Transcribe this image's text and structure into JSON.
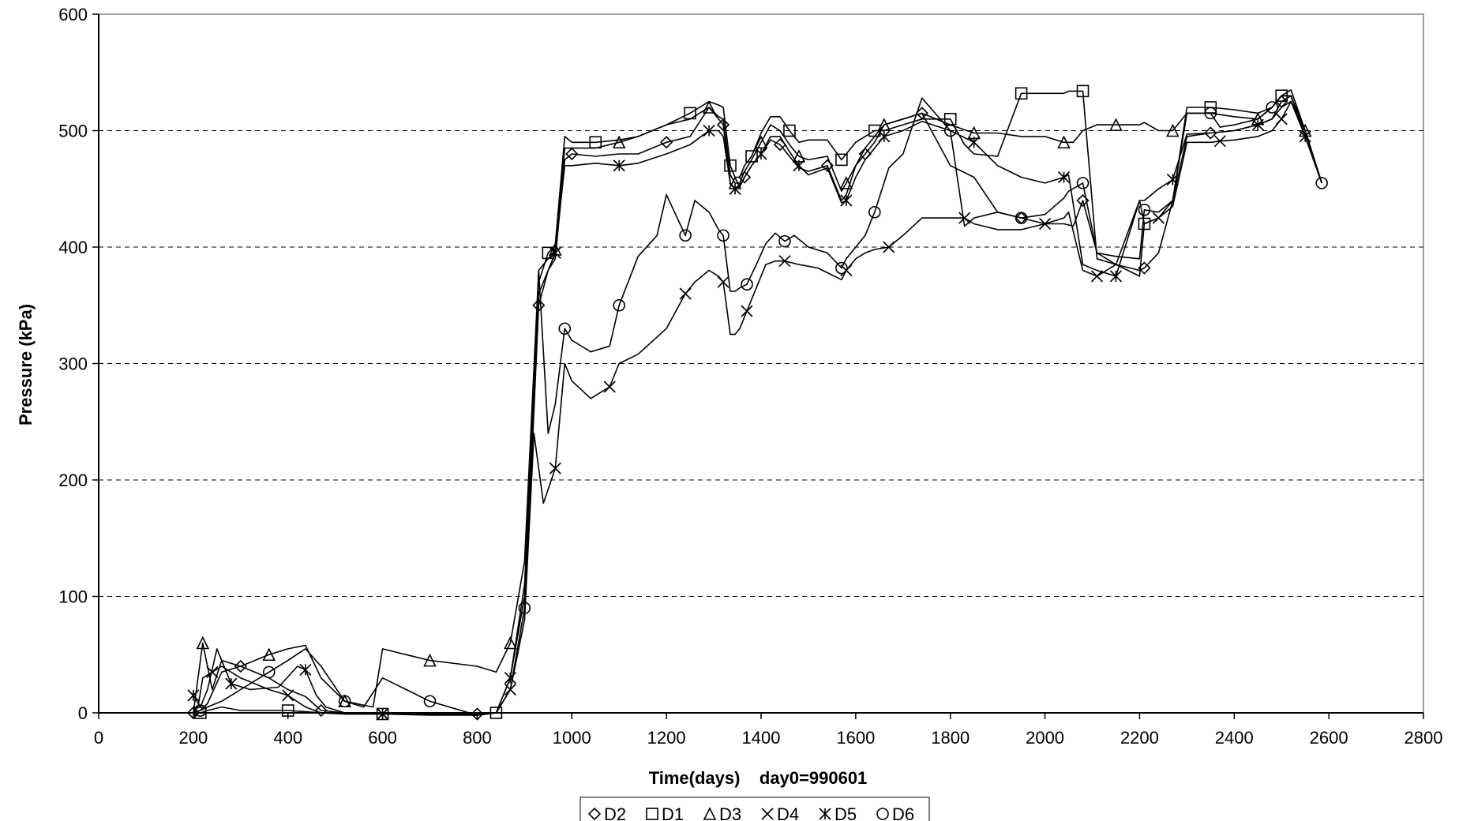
{
  "chart_data": {
    "type": "line",
    "xlabel": "Time(days)    day0=990601",
    "ylabel": "Pressure (kPa)",
    "xlim": [
      0,
      2800
    ],
    "ylim": [
      0,
      600
    ],
    "x_ticks": [
      0,
      200,
      400,
      600,
      800,
      1000,
      1200,
      1400,
      1600,
      1800,
      2000,
      2200,
      2400,
      2600,
      2800
    ],
    "y_ticks": [
      0,
      100,
      200,
      300,
      400,
      500,
      600
    ],
    "grid": "horizontal dashed",
    "legend": "bottom",
    "line_color": "#000000",
    "series": [
      {
        "name": "D2",
        "marker": "diamond",
        "x": [
          200,
          215,
          230,
          260,
          300,
          360,
          400,
          437,
          470,
          520,
          600,
          700,
          800,
          840,
          870,
          900,
          930,
          950,
          965,
          985,
          1000,
          1050,
          1100,
          1140,
          1200,
          1250,
          1290,
          1310,
          1320,
          1335,
          1345,
          1355,
          1365,
          1380,
          1400,
          1420,
          1440,
          1460,
          1480,
          1500,
          1540,
          1570,
          1580,
          1600,
          1620,
          1640,
          1660,
          1700,
          1740,
          1800,
          1850,
          1900,
          1950,
          2000,
          2040,
          2060,
          2080,
          2110,
          2150,
          2200,
          2210,
          2240,
          2270,
          2300,
          2350,
          2400,
          2450,
          2480,
          2500,
          2520,
          2550,
          2585
        ],
        "y": [
          0,
          2,
          8,
          35,
          40,
          30,
          20,
          14,
          2,
          0,
          0,
          -1,
          -1,
          0,
          20,
          80,
          350,
          380,
          390,
          475,
          480,
          478,
          480,
          480,
          490,
          495,
          520,
          510,
          505,
          455,
          450,
          452,
          460,
          470,
          480,
          492,
          488,
          478,
          468,
          465,
          470,
          440,
          445,
          470,
          480,
          490,
          505,
          510,
          515,
          470,
          460,
          430,
          425,
          420,
          420,
          418,
          440,
          395,
          385,
          380,
          382,
          395,
          440,
          495,
          498,
          500,
          505,
          510,
          525,
          530,
          495,
          455
        ]
      },
      {
        "name": "D1",
        "marker": "square",
        "x": [
          200,
          215,
          230,
          260,
          300,
          400,
          437,
          470,
          520,
          600,
          650,
          700,
          800,
          840,
          870,
          900,
          930,
          950,
          965,
          985,
          1000,
          1050,
          1100,
          1140,
          1200,
          1250,
          1290,
          1310,
          1320,
          1335,
          1345,
          1355,
          1365,
          1380,
          1400,
          1420,
          1440,
          1460,
          1480,
          1500,
          1540,
          1570,
          1580,
          1600,
          1620,
          1640,
          1660,
          1700,
          1740,
          1800,
          1830,
          1850,
          1900,
          1950,
          2000,
          2040,
          2050,
          2080,
          2110,
          2150,
          2200,
          2210,
          2240,
          2270,
          2300,
          2350,
          2400,
          2450,
          2480,
          2500,
          2520,
          2550,
          2585
        ],
        "y": [
          0,
          0,
          2,
          5,
          2,
          2,
          1,
          0,
          -1,
          -1,
          0,
          -1,
          -2,
          0,
          30,
          100,
          370,
          395,
          402,
          495,
          490,
          490,
          492,
          495,
          505,
          515,
          525,
          522,
          520,
          470,
          460,
          460,
          470,
          478,
          498,
          512,
          512,
          500,
          490,
          492,
          492,
          475,
          480,
          490,
          495,
          500,
          500,
          505,
          510,
          510,
          488,
          480,
          478,
          532,
          532,
          532,
          534,
          534,
          390,
          385,
          375,
          420,
          425,
          440,
          520,
          520,
          518,
          515,
          520,
          530,
          535,
          500,
          455
        ]
      },
      {
        "name": "D3",
        "marker": "triangle",
        "x": [
          200,
          210,
          220,
          240,
          260,
          300,
          360,
          400,
          437,
          470,
          520,
          580,
          600,
          650,
          700,
          760,
          800,
          840,
          870,
          900,
          930,
          950,
          965,
          985,
          1000,
          1050,
          1100,
          1140,
          1200,
          1250,
          1290,
          1310,
          1320,
          1335,
          1345,
          1355,
          1365,
          1380,
          1400,
          1420,
          1440,
          1460,
          1480,
          1500,
          1540,
          1570,
          1580,
          1600,
          1620,
          1640,
          1660,
          1700,
          1740,
          1800,
          1850,
          1900,
          1950,
          2000,
          2040,
          2060,
          2080,
          2110,
          2150,
          2200,
          2210,
          2240,
          2270,
          2300,
          2350,
          2400,
          2450,
          2480,
          2500,
          2520,
          2550,
          2585
        ],
        "y": [
          0,
          30,
          60,
          20,
          45,
          40,
          50,
          55,
          58,
          30,
          10,
          5,
          55,
          50,
          45,
          42,
          40,
          35,
          60,
          130,
          380,
          390,
          398,
          485,
          485,
          485,
          490,
          495,
          505,
          510,
          520,
          512,
          510,
          462,
          455,
          455,
          465,
          475,
          490,
          505,
          500,
          488,
          478,
          475,
          478,
          448,
          455,
          470,
          485,
          495,
          505,
          510,
          515,
          505,
          498,
          498,
          495,
          495,
          490,
          490,
          500,
          505,
          505,
          505,
          507,
          500,
          500,
          515,
          515,
          512,
          510,
          520,
          530,
          530,
          500,
          455
        ]
      },
      {
        "name": "D4",
        "marker": "x",
        "x": [
          200,
          210,
          220,
          240,
          260,
          300,
          360,
          400,
          437,
          470,
          520,
          600,
          700,
          800,
          840,
          870,
          900,
          920,
          940,
          965,
          985,
          1000,
          1040,
          1080,
          1100,
          1140,
          1200,
          1240,
          1260,
          1290,
          1310,
          1320,
          1335,
          1345,
          1355,
          1370,
          1390,
          1410,
          1430,
          1450,
          1480,
          1520,
          1570,
          1580,
          1600,
          1620,
          1640,
          1670,
          1700,
          1740,
          1800,
          1830,
          1850,
          1900,
          1950,
          2000,
          2040,
          2050,
          2080,
          2110,
          2150,
          2200,
          2210,
          2240,
          2270,
          2300,
          2350,
          2370,
          2400,
          2450,
          2480,
          2500,
          2520,
          2550,
          2585
        ],
        "y": [
          0,
          5,
          30,
          35,
          40,
          30,
          20,
          15,
          5,
          0,
          -1,
          -1,
          -2,
          -2,
          0,
          20,
          80,
          240,
          180,
          210,
          300,
          285,
          270,
          280,
          300,
          308,
          330,
          360,
          370,
          380,
          375,
          370,
          325,
          325,
          330,
          345,
          365,
          385,
          388,
          388,
          385,
          382,
          372,
          380,
          390,
          395,
          398,
          400,
          410,
          425,
          425,
          425,
          420,
          415,
          415,
          420,
          425,
          430,
          380,
          375,
          385,
          440,
          420,
          425,
          435,
          490,
          490,
          491,
          492,
          495,
          500,
          510,
          525,
          500,
          455
        ]
      },
      {
        "name": "D5",
        "marker": "asterisk",
        "x": [
          200,
          215,
          230,
          250,
          280,
          320,
          380,
          420,
          437,
          460,
          480,
          520,
          600,
          700,
          800,
          840,
          870,
          900,
          930,
          950,
          965,
          985,
          1000,
          1050,
          1100,
          1140,
          1200,
          1250,
          1290,
          1310,
          1320,
          1335,
          1345,
          1355,
          1365,
          1380,
          1400,
          1420,
          1440,
          1460,
          1480,
          1500,
          1540,
          1570,
          1580,
          1600,
          1620,
          1640,
          1660,
          1700,
          1740,
          1800,
          1850,
          1900,
          1950,
          2000,
          2040,
          2050,
          2080,
          2110,
          2150,
          2200,
          2210,
          2240,
          2270,
          2300,
          2350,
          2400,
          2450,
          2480,
          2500,
          2520,
          2550,
          2585
        ],
        "y": [
          15,
          5,
          20,
          55,
          25,
          20,
          22,
          40,
          37,
          15,
          5,
          0,
          -1,
          -1,
          -2,
          0,
          30,
          110,
          360,
          380,
          395,
          470,
          470,
          472,
          470,
          472,
          480,
          488,
          500,
          500,
          495,
          455,
          450,
          452,
          460,
          470,
          480,
          495,
          495,
          482,
          470,
          462,
          468,
          438,
          440,
          460,
          475,
          485,
          495,
          500,
          508,
          500,
          490,
          470,
          460,
          455,
          460,
          462,
          385,
          380,
          375,
          440,
          440,
          450,
          458,
          497,
          498,
          500,
          505,
          510,
          520,
          525,
          495,
          455
        ]
      },
      {
        "name": "D6",
        "marker": "circle",
        "x": [
          200,
          215,
          230,
          260,
          300,
          360,
          400,
          437,
          470,
          520,
          560,
          600,
          650,
          700,
          800,
          840,
          870,
          900,
          930,
          950,
          965,
          985,
          1000,
          1040,
          1080,
          1100,
          1140,
          1180,
          1200,
          1240,
          1260,
          1290,
          1310,
          1320,
          1335,
          1345,
          1355,
          1370,
          1390,
          1410,
          1430,
          1450,
          1470,
          1500,
          1540,
          1570,
          1580,
          1600,
          1620,
          1640,
          1670,
          1700,
          1740,
          1800,
          1830,
          1850,
          1900,
          1950,
          2000,
          2040,
          2050,
          2080,
          2110,
          2150,
          2200,
          2210,
          2240,
          2270,
          2300,
          2350,
          2370,
          2400,
          2450,
          2480,
          2500,
          2520,
          2550,
          2585
        ],
        "y": [
          0,
          2,
          5,
          10,
          20,
          35,
          45,
          55,
          40,
          10,
          5,
          30,
          20,
          10,
          -2,
          0,
          20,
          90,
          380,
          240,
          265,
          330,
          320,
          310,
          315,
          350,
          392,
          410,
          445,
          410,
          440,
          430,
          415,
          410,
          362,
          362,
          365,
          368,
          385,
          403,
          412,
          405,
          410,
          400,
          395,
          382,
          390,
          400,
          410,
          430,
          468,
          480,
          528,
          500,
          418,
          425,
          430,
          425,
          428,
          442,
          448,
          455,
          395,
          392,
          390,
          432,
          430,
          440,
          515,
          515,
          503,
          505,
          510,
          520,
          530,
          530,
          495,
          455
        ]
      }
    ]
  }
}
